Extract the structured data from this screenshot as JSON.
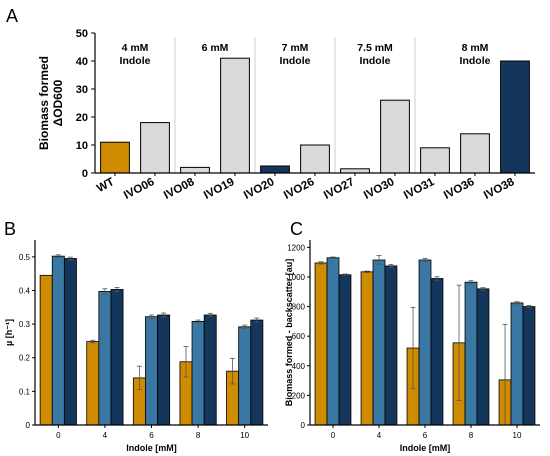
{
  "colors": {
    "orange": "#D08C00",
    "blue": "#3A77A3",
    "navy": "#14365A",
    "grey": "#D9D9D9",
    "divider": "#CCCCCC"
  },
  "chart_data": [
    {
      "id": "A",
      "type": "bar",
      "panel_label": "A",
      "categories": [
        "WT",
        "IVO06",
        "IVO08",
        "IVO19",
        "IVO20",
        "IVO26",
        "IVO27",
        "IVO30",
        "IVO31",
        "IVO36",
        "IVO38"
      ],
      "values": [
        11,
        18,
        2,
        41,
        2.5,
        10,
        1.5,
        26,
        9,
        14,
        40
      ],
      "bar_colors": [
        "orange",
        "grey",
        "grey",
        "grey",
        "navy",
        "grey",
        "grey",
        "grey",
        "grey",
        "grey",
        "navy"
      ],
      "ylabel_line1": "Biomass formed",
      "ylabel_line2": "ΔOD600",
      "ylim": [
        0,
        50
      ],
      "yticks": [
        0,
        10,
        20,
        30,
        40,
        50
      ],
      "groups": [
        {
          "line1": "4 mM",
          "line2": "Indole",
          "start": 0,
          "end": 1
        },
        {
          "line1": "6 mM",
          "line2": "",
          "start": 2,
          "end": 3
        },
        {
          "line1": "7 mM",
          "line2": "Indole",
          "start": 4,
          "end": 5
        },
        {
          "line1": "7.5 mM",
          "line2": "Indole",
          "start": 6,
          "end": 7
        },
        {
          "line1": "8 mM",
          "line2": "Indole",
          "start": 8,
          "end": 10
        }
      ]
    },
    {
      "id": "B",
      "type": "bar",
      "panel_label": "B",
      "categories": [
        "0",
        "4",
        "6",
        "8",
        "10"
      ],
      "xlabel": "Indole [mM]",
      "ylabel": "µ [h⁻¹]",
      "ylim": [
        0,
        0.55
      ],
      "yticks": [
        0,
        0.1,
        0.2,
        0.3,
        0.4,
        0.5
      ],
      "ytick_labels": [
        "0",
        "0.1",
        "0.2",
        "0.3",
        "0.4",
        "0.5"
      ],
      "series": [
        {
          "color": "orange",
          "values": [
            0.445,
            0.248,
            0.14,
            0.188,
            0.16
          ],
          "errors": [
            0,
            0.004,
            0.035,
            0.045,
            0.038
          ]
        },
        {
          "color": "blue",
          "values": [
            0.502,
            0.397,
            0.322,
            0.308,
            0.292
          ],
          "errors": [
            0.004,
            0.008,
            0.005,
            0.004,
            0.005
          ]
        },
        {
          "color": "navy",
          "values": [
            0.495,
            0.403,
            0.327,
            0.327,
            0.312
          ],
          "errors": [
            0.004,
            0.006,
            0.006,
            0.005,
            0.006
          ]
        }
      ]
    },
    {
      "id": "C",
      "type": "bar",
      "panel_label": "C",
      "categories": [
        "0",
        "4",
        "6",
        "8",
        "10"
      ],
      "xlabel": "Indole [mM]",
      "ylabel": "Biomass formed - backscatter [au]",
      "ylim": [
        0,
        1250
      ],
      "yticks": [
        0,
        200,
        400,
        600,
        800,
        1000,
        1200
      ],
      "ytick_labels": [
        "0",
        "200",
        "400",
        "600",
        "800",
        "1000",
        "1200"
      ],
      "series": [
        {
          "color": "orange",
          "values": [
            1095,
            1035,
            520,
            555,
            305
          ],
          "errors": [
            8,
            5,
            275,
            390,
            375
          ]
        },
        {
          "color": "blue",
          "values": [
            1130,
            1115,
            1115,
            965,
            825
          ],
          "errors": [
            5,
            30,
            10,
            10,
            8
          ]
        },
        {
          "color": "navy",
          "values": [
            1015,
            1075,
            990,
            920,
            800
          ],
          "errors": [
            5,
            10,
            12,
            8,
            8
          ]
        }
      ]
    }
  ]
}
